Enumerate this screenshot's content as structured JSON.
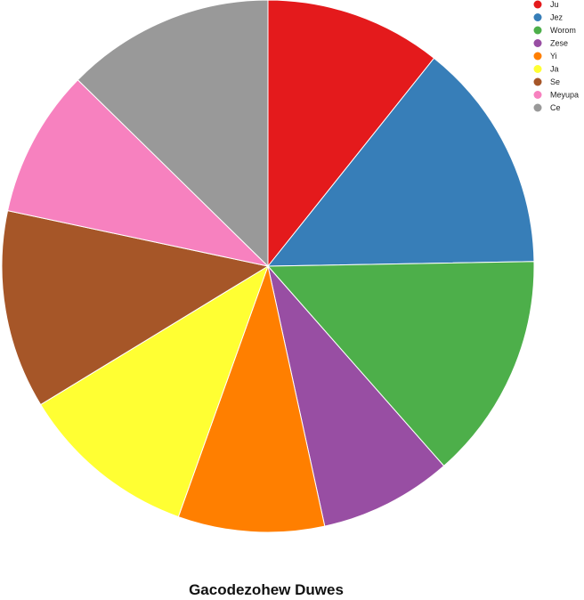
{
  "chart_data": {
    "type": "pie",
    "title": "Gacodezohew Duwes",
    "legend_position": "top-right",
    "start_angle": "12 o'clock",
    "direction": "clockwise",
    "slices": [
      {
        "label": "Ju",
        "value": 10.5,
        "color": "#e41a1c"
      },
      {
        "label": "Jez",
        "value": 13.7,
        "color": "#377eb8"
      },
      {
        "label": "Worom",
        "value": 13.5,
        "color": "#4daf4a"
      },
      {
        "label": "Zese",
        "value": 7.9,
        "color": "#984ea3"
      },
      {
        "label": "Yi",
        "value": 8.7,
        "color": "#ff7f00"
      },
      {
        "label": "Ja",
        "value": 10.6,
        "color": "#ffff33"
      },
      {
        "label": "Se",
        "value": 11.8,
        "color": "#a65628"
      },
      {
        "label": "Meyupa",
        "value": 8.8,
        "color": "#f781bf"
      },
      {
        "label": "Ce",
        "value": 12.4,
        "color": "#999999"
      }
    ]
  }
}
